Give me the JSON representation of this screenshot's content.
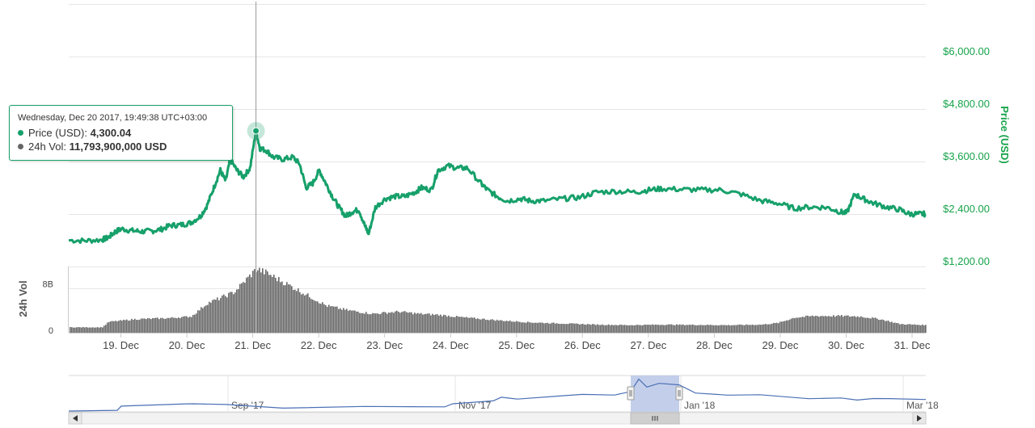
{
  "colors": {
    "price": "#16a06a",
    "volume": "#666666",
    "navigator_line": "#4a6fb5",
    "navigator_mask": "#b8c7e6",
    "grid": "#e6e6e6"
  },
  "tooltip": {
    "date": "Wednesday, Dec 20 2017, 19:49:38 UTC+03:00",
    "price_label": "Price (USD):",
    "price_value": "4,300.04",
    "vol_label": "24h Vol:",
    "vol_value": "11,793,900,000 USD"
  },
  "navigator": {
    "labels": [
      "Sep '17",
      "Nov '17",
      "Jan '18",
      "Mar '18"
    ],
    "scroll_grip_icon": "grip-lines-icon",
    "scroll_left_icon": "triangle-left-icon",
    "scroll_right_icon": "triangle-right-icon"
  },
  "chart_data": {
    "type": "line",
    "ylabel": "Price (USD)",
    "y_ticks": [
      "$1,200.00",
      "$2,400.00",
      "$3,600.00",
      "$4,800.00",
      "$6,000.00"
    ],
    "ylim": [
      1200,
      7200
    ],
    "x_tick_labels": [
      "19. Dec",
      "20. Dec",
      "21. Dec",
      "22. Dec",
      "23. Dec",
      "24. Dec",
      "25. Dec",
      "26. Dec",
      "27. Dec",
      "28. Dec",
      "29. Dec",
      "30. Dec",
      "31. Dec"
    ],
    "x_ticks_day": [
      19,
      20,
      21,
      22,
      23,
      24,
      25,
      26,
      27,
      28,
      29,
      30,
      31
    ],
    "xlim_day": [
      18.0,
      31.0
    ],
    "grid": true,
    "series": [
      {
        "name": "Price (USD)",
        "points": [
          [
            18.0,
            1800
          ],
          [
            18.25,
            1790
          ],
          [
            18.5,
            1810
          ],
          [
            18.6,
            1860
          ],
          [
            18.7,
            1990
          ],
          [
            18.8,
            2060
          ],
          [
            18.95,
            2020
          ],
          [
            19.1,
            2000
          ],
          [
            19.25,
            2010
          ],
          [
            19.4,
            2050
          ],
          [
            19.55,
            2140
          ],
          [
            19.7,
            2150
          ],
          [
            19.85,
            2200
          ],
          [
            20.0,
            2350
          ],
          [
            20.1,
            2600
          ],
          [
            20.2,
            3000
          ],
          [
            20.3,
            3400
          ],
          [
            20.38,
            3150
          ],
          [
            20.45,
            3650
          ],
          [
            20.55,
            3400
          ],
          [
            20.65,
            3250
          ],
          [
            20.75,
            3450
          ],
          [
            20.84,
            4300
          ],
          [
            20.9,
            3900
          ],
          [
            21.0,
            3850
          ],
          [
            21.1,
            3700
          ],
          [
            21.25,
            3650
          ],
          [
            21.4,
            3700
          ],
          [
            21.5,
            3550
          ],
          [
            21.6,
            3000
          ],
          [
            21.7,
            3100
          ],
          [
            21.8,
            3400
          ],
          [
            21.9,
            3100
          ],
          [
            22.0,
            2800
          ],
          [
            22.1,
            2550
          ],
          [
            22.2,
            2350
          ],
          [
            22.3,
            2450
          ],
          [
            22.4,
            2500
          ],
          [
            22.5,
            2100
          ],
          [
            22.55,
            1950
          ],
          [
            22.65,
            2550
          ],
          [
            22.8,
            2750
          ],
          [
            22.95,
            2800
          ],
          [
            23.1,
            2800
          ],
          [
            23.25,
            2900
          ],
          [
            23.35,
            3000
          ],
          [
            23.5,
            2950
          ],
          [
            23.6,
            3400
          ],
          [
            23.75,
            3500
          ],
          [
            23.9,
            3450
          ],
          [
            24.05,
            3450
          ],
          [
            24.25,
            3100
          ],
          [
            24.35,
            2950
          ],
          [
            24.5,
            2800
          ],
          [
            24.65,
            2700
          ],
          [
            24.85,
            2750
          ],
          [
            25.0,
            2700
          ],
          [
            25.2,
            2700
          ],
          [
            25.5,
            2750
          ],
          [
            25.75,
            2780
          ],
          [
            26.0,
            2900
          ],
          [
            26.3,
            2920
          ],
          [
            26.6,
            2900
          ],
          [
            26.8,
            2950
          ],
          [
            27.0,
            2980
          ],
          [
            27.3,
            2960
          ],
          [
            27.6,
            2950
          ],
          [
            27.9,
            2950
          ],
          [
            28.2,
            2850
          ],
          [
            28.5,
            2700
          ],
          [
            28.75,
            2650
          ],
          [
            29.0,
            2530
          ],
          [
            29.25,
            2560
          ],
          [
            29.5,
            2550
          ],
          [
            29.7,
            2450
          ],
          [
            29.8,
            2420
          ],
          [
            29.92,
            2850
          ],
          [
            30.05,
            2750
          ],
          [
            30.2,
            2650
          ],
          [
            30.4,
            2560
          ],
          [
            30.6,
            2500
          ],
          [
            30.75,
            2400
          ],
          [
            30.9,
            2400
          ],
          [
            31.0,
            2400
          ]
        ]
      },
      {
        "name": "24h Vol",
        "ylim": [
          0,
          12000000000
        ],
        "y_ticks": [
          "0",
          "8B"
        ],
        "points": [
          [
            18.0,
            1000000000
          ],
          [
            18.5,
            1000000000
          ],
          [
            18.6,
            2000000000
          ],
          [
            19.0,
            2500000000
          ],
          [
            19.5,
            2700000000
          ],
          [
            19.85,
            3000000000
          ],
          [
            20.0,
            4500000000
          ],
          [
            20.1,
            5500000000
          ],
          [
            20.25,
            6200000000
          ],
          [
            20.5,
            7500000000
          ],
          [
            20.84,
            11793900000
          ],
          [
            21.0,
            11000000000
          ],
          [
            21.3,
            9000000000
          ],
          [
            21.6,
            7000000000
          ],
          [
            21.9,
            5000000000
          ],
          [
            22.2,
            4200000000
          ],
          [
            22.6,
            3500000000
          ],
          [
            23.0,
            3900000000
          ],
          [
            23.3,
            3500000000
          ],
          [
            23.6,
            3300000000
          ],
          [
            24.0,
            2800000000
          ],
          [
            24.5,
            2300000000
          ],
          [
            25.0,
            1900000000
          ],
          [
            25.5,
            1700000000
          ],
          [
            26.0,
            1500000000
          ],
          [
            26.5,
            1400000000
          ],
          [
            27.0,
            1500000000
          ],
          [
            27.5,
            1450000000
          ],
          [
            28.0,
            1400000000
          ],
          [
            28.5,
            1500000000
          ],
          [
            28.75,
            1800000000
          ],
          [
            29.0,
            2800000000
          ],
          [
            29.3,
            3100000000
          ],
          [
            29.7,
            3100000000
          ],
          [
            30.0,
            3000000000
          ],
          [
            30.3,
            2500000000
          ],
          [
            30.6,
            1600000000
          ],
          [
            31.0,
            1400000000
          ]
        ]
      }
    ]
  }
}
